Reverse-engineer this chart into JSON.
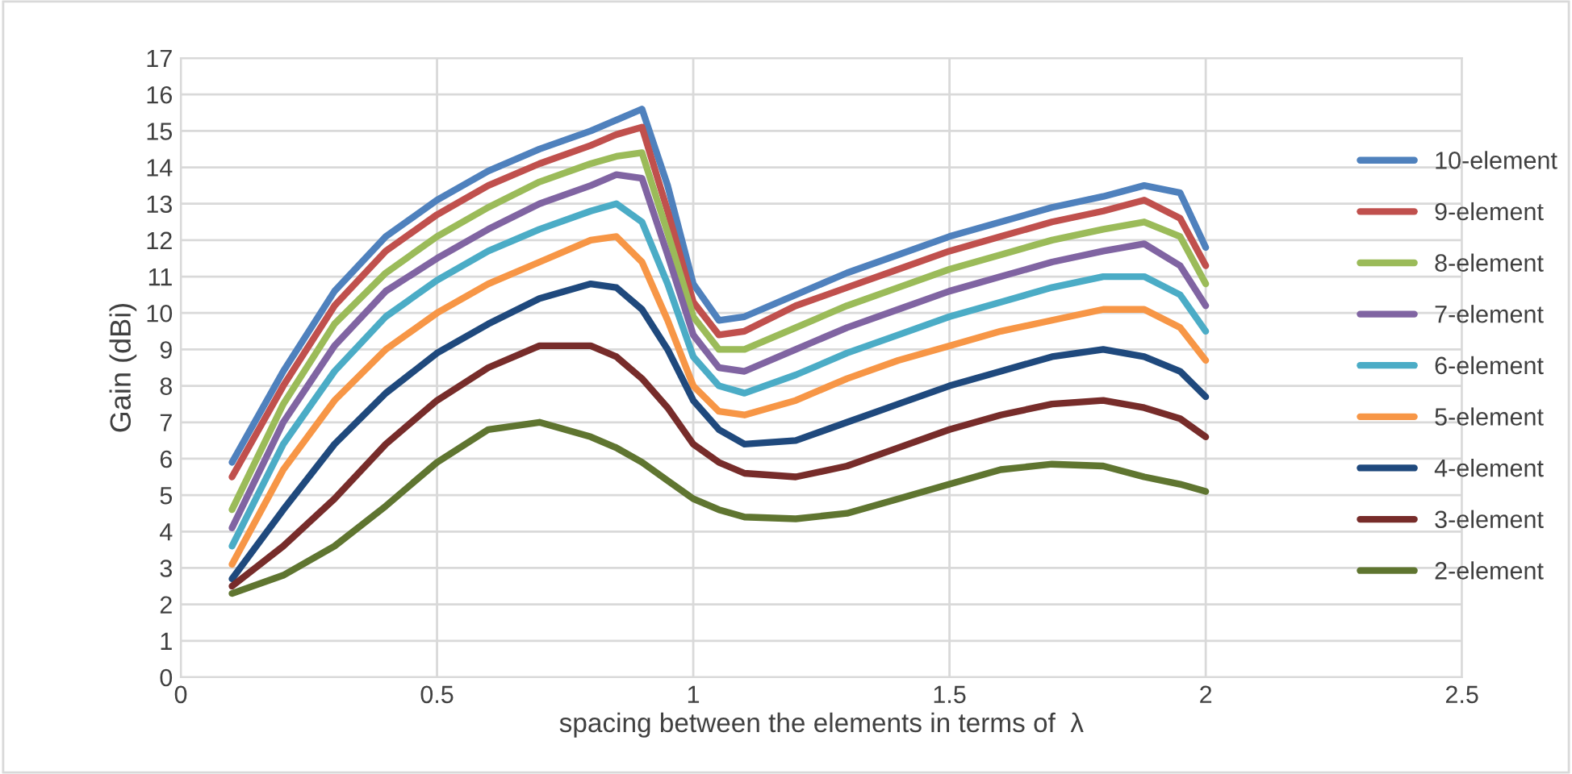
{
  "chart_data": {
    "type": "line",
    "xlabel": "spacing between the elements in terms of  λ",
    "ylabel": "Gain (dBi)",
    "x": [
      0.1,
      0.2,
      0.3,
      0.4,
      0.5,
      0.6,
      0.7,
      0.8,
      0.85,
      0.9,
      0.95,
      1.0,
      1.05,
      1.1,
      1.2,
      1.3,
      1.4,
      1.5,
      1.6,
      1.7,
      1.8,
      1.88,
      1.95,
      2.0
    ],
    "xlim": [
      0,
      2.5
    ],
    "xticks": [
      0,
      0.5,
      1,
      1.5,
      2,
      2.5
    ],
    "ylim": [
      0,
      17
    ],
    "yticks": [
      0,
      1,
      2,
      3,
      4,
      5,
      6,
      7,
      8,
      9,
      10,
      11,
      12,
      13,
      14,
      15,
      16,
      17
    ],
    "grid": true,
    "legend": "right",
    "line_style": "solid",
    "marker": "none",
    "series": [
      {
        "name": "10-element",
        "color": "#4f81bd",
        "values": [
          5.9,
          8.4,
          10.6,
          12.1,
          13.1,
          13.9,
          14.5,
          15.0,
          15.3,
          15.6,
          13.5,
          10.8,
          9.8,
          9.9,
          10.5,
          11.1,
          11.6,
          12.1,
          12.5,
          12.9,
          13.2,
          13.5,
          13.3,
          11.8
        ]
      },
      {
        "name": "9-element",
        "color": "#c0504d",
        "values": [
          5.5,
          8.0,
          10.2,
          11.7,
          12.7,
          13.5,
          14.1,
          14.6,
          14.9,
          15.1,
          12.8,
          10.3,
          9.4,
          9.5,
          10.2,
          10.7,
          11.2,
          11.7,
          12.1,
          12.5,
          12.8,
          13.1,
          12.6,
          11.3
        ]
      },
      {
        "name": "8-element",
        "color": "#9bbb59",
        "values": [
          4.6,
          7.5,
          9.7,
          11.1,
          12.1,
          12.9,
          13.6,
          14.1,
          14.3,
          14.4,
          12.2,
          9.9,
          9.0,
          9.0,
          9.6,
          10.2,
          10.7,
          11.2,
          11.6,
          12.0,
          12.3,
          12.5,
          12.1,
          10.8
        ]
      },
      {
        "name": "7-element",
        "color": "#8064a2",
        "values": [
          4.1,
          7.0,
          9.1,
          10.6,
          11.5,
          12.3,
          13.0,
          13.5,
          13.8,
          13.7,
          11.6,
          9.4,
          8.5,
          8.4,
          9.0,
          9.6,
          10.1,
          10.6,
          11.0,
          11.4,
          11.7,
          11.9,
          11.3,
          10.2
        ]
      },
      {
        "name": "6-element",
        "color": "#4bacc6",
        "values": [
          3.6,
          6.4,
          8.4,
          9.9,
          10.9,
          11.7,
          12.3,
          12.8,
          13.0,
          12.5,
          10.8,
          8.8,
          8.0,
          7.8,
          8.3,
          8.9,
          9.4,
          9.9,
          10.3,
          10.7,
          11.0,
          11.0,
          10.5,
          9.5
        ]
      },
      {
        "name": "5-element",
        "color": "#f79646",
        "values": [
          3.1,
          5.7,
          7.6,
          9.0,
          10.0,
          10.8,
          11.4,
          12.0,
          12.1,
          11.4,
          9.8,
          8.0,
          7.3,
          7.2,
          7.6,
          8.2,
          8.7,
          9.1,
          9.5,
          9.8,
          10.1,
          10.1,
          9.6,
          8.7
        ]
      },
      {
        "name": "4-element",
        "color": "#1f497d",
        "values": [
          2.7,
          4.6,
          6.4,
          7.8,
          8.9,
          9.7,
          10.4,
          10.8,
          10.7,
          10.1,
          9.0,
          7.6,
          6.8,
          6.4,
          6.5,
          7.0,
          7.5,
          8.0,
          8.4,
          8.8,
          9.0,
          8.8,
          8.4,
          7.7
        ]
      },
      {
        "name": "3-element",
        "color": "#772c2a",
        "values": [
          2.5,
          3.6,
          4.9,
          6.4,
          7.6,
          8.5,
          9.1,
          9.1,
          8.8,
          8.2,
          7.4,
          6.4,
          5.9,
          5.6,
          5.5,
          5.8,
          6.3,
          6.8,
          7.2,
          7.5,
          7.6,
          7.4,
          7.1,
          6.6
        ]
      },
      {
        "name": "2-element",
        "color": "#5f7530",
        "values": [
          2.3,
          2.8,
          3.6,
          4.7,
          5.9,
          6.8,
          7.0,
          6.6,
          6.3,
          5.9,
          5.4,
          4.9,
          4.6,
          4.4,
          4.35,
          4.5,
          4.9,
          5.3,
          5.7,
          5.85,
          5.8,
          5.5,
          5.3,
          5.1
        ]
      }
    ]
  }
}
